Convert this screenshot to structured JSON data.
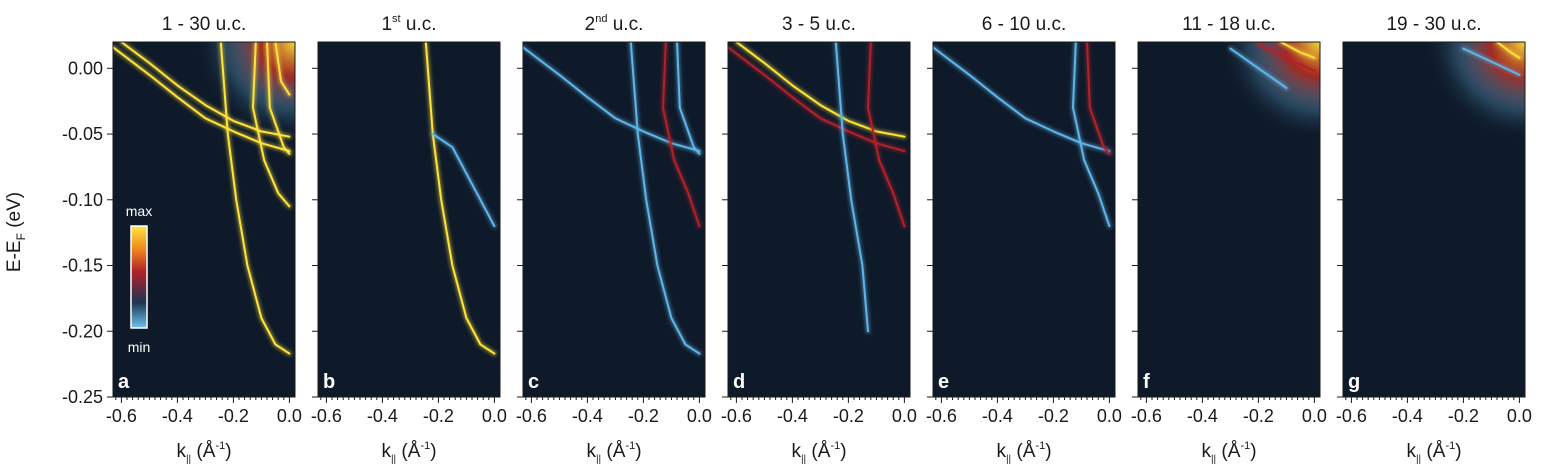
{
  "figure": {
    "ylabel_main": "E-E",
    "ylabel_sub": "F",
    "ylabel_unit": " (eV)",
    "xlabel_main": "k",
    "xlabel_sub": "||",
    "xlabel_unit_pre": " (Å",
    "xlabel_unit_sup": "-1",
    "xlabel_unit_post": ")",
    "colorbar": {
      "max_label": "max",
      "min_label": "min"
    },
    "colors": {
      "background": "#0e1a2a",
      "low": "#5fb4e8",
      "mid": "#b2202a",
      "high": "#ffe23a"
    }
  },
  "chart_data": [
    {
      "type": "heatmap",
      "panel_letter": "a",
      "title_main": "1 - 30 u.c.",
      "title_sup": "",
      "title_tail": "",
      "xlabel": "k|| (Å-1)",
      "ylabel": "E-EF (eV)",
      "xlim": [
        -0.63,
        0.02
      ],
      "ylim": [
        -0.25,
        0.02
      ],
      "xticks": [
        "-0.6",
        "-0.4",
        "-0.2",
        "0.0"
      ],
      "yticks": [
        "0.00",
        "-0.05",
        "-0.10",
        "-0.15",
        "-0.20",
        "-0.25"
      ],
      "bands": [
        {
          "points": [
            [
              -0.63,
              0.016
            ],
            [
              -0.5,
              -0.005
            ],
            [
              -0.4,
              -0.022
            ],
            [
              -0.3,
              -0.038
            ],
            [
              -0.2,
              -0.048
            ],
            [
              -0.1,
              -0.057
            ],
            [
              0.0,
              -0.063
            ]
          ],
          "intensity": "high"
        },
        {
          "points": [
            [
              -0.6,
              0.02
            ],
            [
              -0.5,
              0.004
            ],
            [
              -0.4,
              -0.013
            ],
            [
              -0.3,
              -0.028
            ],
            [
              -0.2,
              -0.04
            ],
            [
              -0.1,
              -0.048
            ],
            [
              0.0,
              -0.052
            ]
          ],
          "intensity": "high"
        },
        {
          "points": [
            [
              -0.245,
              0.02
            ],
            [
              -0.22,
              -0.05
            ],
            [
              -0.19,
              -0.1
            ],
            [
              -0.15,
              -0.15
            ],
            [
              -0.1,
              -0.19
            ],
            [
              -0.05,
              -0.21
            ],
            [
              0.0,
              -0.217
            ]
          ],
          "intensity": "high"
        },
        {
          "points": [
            [
              -0.12,
              0.02
            ],
            [
              -0.13,
              -0.03
            ],
            [
              -0.09,
              -0.07
            ],
            [
              -0.04,
              -0.095
            ],
            [
              0.0,
              -0.105
            ]
          ],
          "intensity": "high"
        },
        {
          "points": [
            [
              -0.08,
              0.02
            ],
            [
              -0.07,
              -0.03
            ],
            [
              -0.02,
              -0.06
            ],
            [
              0.0,
              -0.065
            ]
          ],
          "intensity": "high"
        },
        {
          "points": [
            [
              -0.05,
              0.02
            ],
            [
              -0.03,
              -0.01
            ],
            [
              0.0,
              -0.02
            ]
          ],
          "intensity": "high"
        }
      ]
    },
    {
      "type": "heatmap",
      "panel_letter": "b",
      "title_main": "1",
      "title_sup": "st",
      "title_tail": " u.c.",
      "xlabel": "k|| (Å-1)",
      "ylabel": "",
      "xlim": [
        -0.63,
        0.02
      ],
      "ylim": [
        -0.25,
        0.02
      ],
      "xticks": [
        "-0.6",
        "-0.4",
        "-0.2",
        "0.0"
      ],
      "yticks": [],
      "bands": [
        {
          "points": [
            [
              -0.245,
              0.02
            ],
            [
              -0.22,
              -0.05
            ],
            [
              -0.19,
              -0.1
            ],
            [
              -0.15,
              -0.15
            ],
            [
              -0.1,
              -0.19
            ],
            [
              -0.05,
              -0.21
            ],
            [
              0.0,
              -0.217
            ]
          ],
          "intensity": "high"
        },
        {
          "points": [
            [
              -0.22,
              -0.05
            ],
            [
              -0.15,
              -0.06
            ],
            [
              -0.1,
              -0.08
            ],
            [
              -0.05,
              -0.1
            ],
            [
              0.0,
              -0.12
            ]
          ],
          "intensity": "low"
        }
      ]
    },
    {
      "type": "heatmap",
      "panel_letter": "c",
      "title_main": "2",
      "title_sup": "nd",
      "title_tail": " u.c.",
      "xlabel": "k|| (Å-1)",
      "ylabel": "",
      "xlim": [
        -0.63,
        0.02
      ],
      "ylim": [
        -0.25,
        0.02
      ],
      "xticks": [
        "-0.6",
        "-0.4",
        "-0.2",
        "0.0"
      ],
      "yticks": [],
      "bands": [
        {
          "points": [
            [
              -0.63,
              0.016
            ],
            [
              -0.5,
              -0.005
            ],
            [
              -0.4,
              -0.022
            ],
            [
              -0.3,
              -0.038
            ],
            [
              -0.2,
              -0.048
            ],
            [
              -0.1,
              -0.057
            ],
            [
              0.0,
              -0.063
            ]
          ],
          "intensity": "low"
        },
        {
          "points": [
            [
              -0.245,
              0.02
            ],
            [
              -0.22,
              -0.05
            ],
            [
              -0.19,
              -0.1
            ],
            [
              -0.15,
              -0.15
            ],
            [
              -0.1,
              -0.19
            ],
            [
              -0.05,
              -0.21
            ],
            [
              0.0,
              -0.217
            ]
          ],
          "intensity": "low"
        },
        {
          "points": [
            [
              -0.12,
              0.02
            ],
            [
              -0.13,
              -0.03
            ],
            [
              -0.09,
              -0.07
            ],
            [
              -0.04,
              -0.095
            ],
            [
              0.0,
              -0.12
            ]
          ],
          "intensity": "mid"
        },
        {
          "points": [
            [
              -0.08,
              0.02
            ],
            [
              -0.07,
              -0.03
            ],
            [
              -0.02,
              -0.06
            ],
            [
              0.0,
              -0.065
            ]
          ],
          "intensity": "low"
        }
      ]
    },
    {
      "type": "heatmap",
      "panel_letter": "d",
      "title_main": "3 - 5 u.c.",
      "title_sup": "",
      "title_tail": "",
      "xlabel": "k|| (Å-1)",
      "ylabel": "",
      "xlim": [
        -0.63,
        0.02
      ],
      "ylim": [
        -0.25,
        0.02
      ],
      "xticks": [
        "-0.6",
        "-0.4",
        "-0.2",
        "0.0"
      ],
      "yticks": [],
      "bands": [
        {
          "points": [
            [
              -0.63,
              0.016
            ],
            [
              -0.5,
              -0.005
            ],
            [
              -0.4,
              -0.022
            ],
            [
              -0.3,
              -0.038
            ],
            [
              -0.2,
              -0.048
            ],
            [
              -0.1,
              -0.057
            ],
            [
              0.0,
              -0.063
            ]
          ],
          "intensity": "mid"
        },
        {
          "points": [
            [
              -0.6,
              0.02
            ],
            [
              -0.5,
              0.004
            ],
            [
              -0.4,
              -0.013
            ],
            [
              -0.3,
              -0.028
            ],
            [
              -0.2,
              -0.04
            ],
            [
              -0.1,
              -0.048
            ],
            [
              0.0,
              -0.052
            ]
          ],
          "intensity": "high"
        },
        {
          "points": [
            [
              -0.12,
              0.02
            ],
            [
              -0.13,
              -0.03
            ],
            [
              -0.09,
              -0.07
            ],
            [
              -0.04,
              -0.095
            ],
            [
              0.0,
              -0.12
            ]
          ],
          "intensity": "mid"
        },
        {
          "points": [
            [
              -0.245,
              0.02
            ],
            [
              -0.22,
              -0.05
            ],
            [
              -0.19,
              -0.1
            ],
            [
              -0.15,
              -0.15
            ],
            [
              -0.13,
              -0.2
            ]
          ],
          "intensity": "low"
        }
      ]
    },
    {
      "type": "heatmap",
      "panel_letter": "e",
      "title_main": "6 - 10 u.c.",
      "title_sup": "",
      "title_tail": "",
      "xlabel": "k|| (Å-1)",
      "ylabel": "",
      "xlim": [
        -0.63,
        0.02
      ],
      "ylim": [
        -0.25,
        0.02
      ],
      "xticks": [
        "-0.6",
        "-0.4",
        "-0.2",
        "0.0"
      ],
      "yticks": [],
      "bands": [
        {
          "points": [
            [
              -0.63,
              0.016
            ],
            [
              -0.5,
              -0.005
            ],
            [
              -0.4,
              -0.022
            ],
            [
              -0.3,
              -0.038
            ],
            [
              -0.2,
              -0.048
            ],
            [
              -0.1,
              -0.057
            ],
            [
              0.0,
              -0.063
            ]
          ],
          "intensity": "low"
        },
        {
          "points": [
            [
              -0.12,
              0.02
            ],
            [
              -0.13,
              -0.03
            ],
            [
              -0.09,
              -0.07
            ],
            [
              -0.04,
              -0.095
            ],
            [
              0.0,
              -0.12
            ]
          ],
          "intensity": "low"
        },
        {
          "points": [
            [
              -0.08,
              0.02
            ],
            [
              -0.07,
              -0.03
            ],
            [
              -0.02,
              -0.06
            ],
            [
              0.0,
              -0.065
            ]
          ],
          "intensity": "mid"
        }
      ]
    },
    {
      "type": "heatmap",
      "panel_letter": "f",
      "title_main": "11 - 18 u.c.",
      "title_sup": "",
      "title_tail": "",
      "xlabel": "k|| (Å-1)",
      "ylabel": "",
      "xlim": [
        -0.63,
        0.02
      ],
      "ylim": [
        -0.25,
        0.02
      ],
      "xticks": [
        "-0.6",
        "-0.4",
        "-0.2",
        "0.0"
      ],
      "yticks": [],
      "bands": [
        {
          "points": [
            [
              -0.2,
              0.018
            ],
            [
              -0.1,
              0.008
            ],
            [
              0.0,
              -0.002
            ]
          ],
          "intensity": "mid"
        },
        {
          "points": [
            [
              -0.12,
              0.02
            ],
            [
              -0.05,
              0.012
            ],
            [
              0.0,
              0.008
            ]
          ],
          "intensity": "high"
        },
        {
          "points": [
            [
              -0.3,
              0.015
            ],
            [
              -0.2,
              0.0
            ],
            [
              -0.1,
              -0.015
            ]
          ],
          "intensity": "low"
        }
      ]
    },
    {
      "type": "heatmap",
      "panel_letter": "g",
      "title_main": "19 - 30 u.c.",
      "title_sup": "",
      "title_tail": "",
      "xlabel": "k|| (Å-1)",
      "ylabel": "",
      "xlim": [
        -0.63,
        0.02
      ],
      "ylim": [
        -0.25,
        0.02
      ],
      "xticks": [
        "-0.6",
        "-0.4",
        "-0.2",
        "0.0"
      ],
      "yticks": [],
      "bands": [
        {
          "points": [
            [
              -0.08,
              0.02
            ],
            [
              -0.03,
              0.012
            ],
            [
              0.0,
              0.008
            ]
          ],
          "intensity": "high"
        },
        {
          "points": [
            [
              -0.2,
              0.015
            ],
            [
              -0.1,
              0.005
            ],
            [
              0.0,
              -0.005
            ]
          ],
          "intensity": "low"
        }
      ]
    }
  ]
}
